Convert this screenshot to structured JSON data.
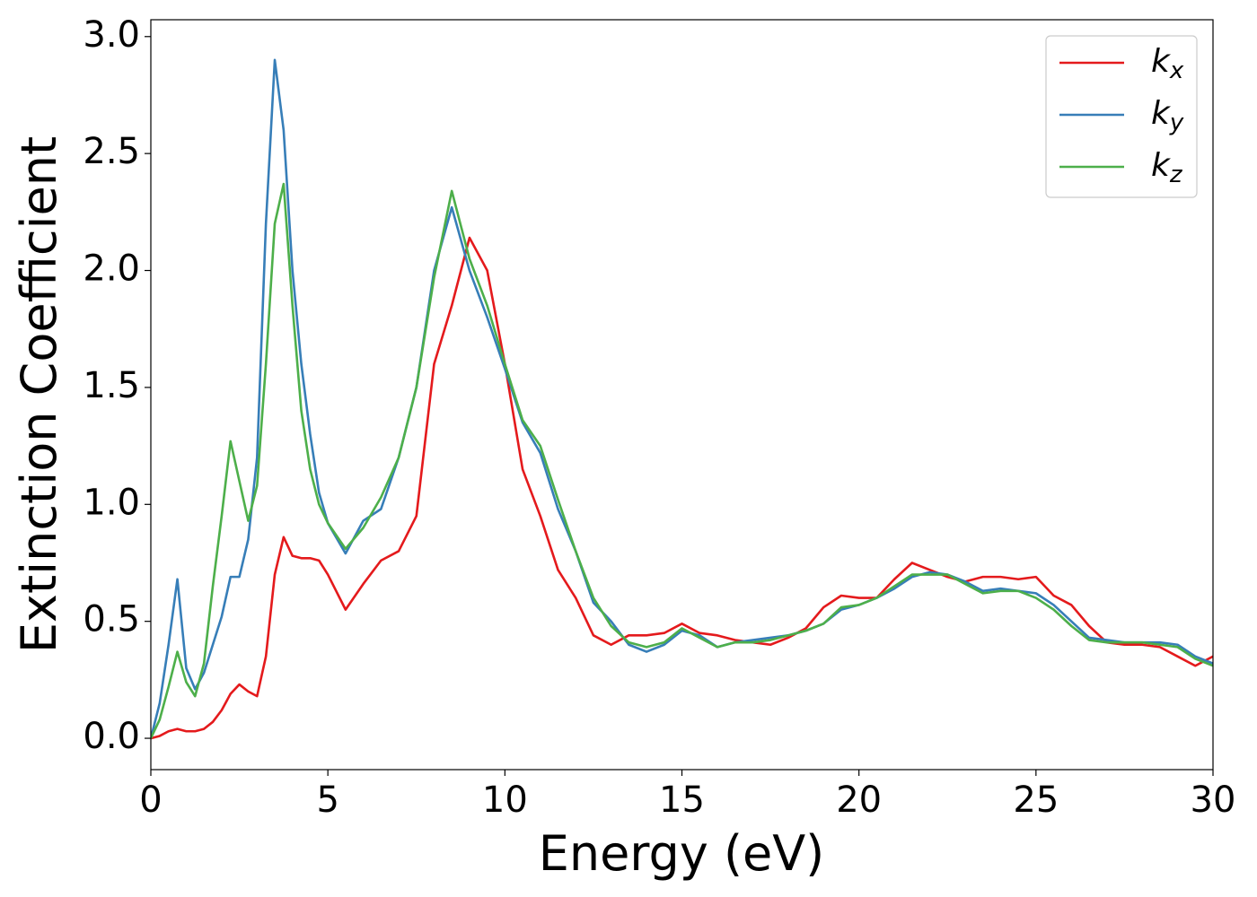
{
  "chart_data": {
    "type": "line",
    "x_label": "Energy (eV)",
    "y_label": "Extinction Coefficient",
    "x": [
      0,
      0.25,
      0.5,
      0.75,
      1,
      1.25,
      1.5,
      1.75,
      2,
      2.25,
      2.5,
      2.75,
      3,
      3.25,
      3.5,
      3.75,
      4,
      4.25,
      4.5,
      4.75,
      5,
      5.5,
      6,
      6.5,
      7,
      7.5,
      8,
      8.5,
      9,
      9.5,
      10,
      10.5,
      11,
      11.5,
      12,
      12.5,
      13,
      13.5,
      14,
      14.5,
      15,
      15.5,
      16,
      16.5,
      17,
      17.5,
      18,
      18.5,
      19,
      19.5,
      20,
      20.5,
      21,
      21.5,
      22,
      22.5,
      23,
      23.5,
      24,
      24.5,
      25,
      25.5,
      26,
      26.5,
      27,
      27.5,
      28,
      28.5,
      29,
      29.5,
      30
    ],
    "series": [
      {
        "name": "kx",
        "color": "#e41a1c",
        "values": [
          0,
          0.01,
          0.03,
          0.04,
          0.03,
          0.03,
          0.04,
          0.07,
          0.12,
          0.19,
          0.23,
          0.2,
          0.18,
          0.35,
          0.7,
          0.86,
          0.78,
          0.77,
          0.77,
          0.76,
          0.7,
          0.55,
          0.66,
          0.76,
          0.8,
          0.95,
          1.6,
          1.85,
          2.14,
          2.0,
          1.6,
          1.15,
          0.95,
          0.72,
          0.6,
          0.44,
          0.4,
          0.44,
          0.44,
          0.45,
          0.49,
          0.45,
          0.44,
          0.42,
          0.41,
          0.4,
          0.43,
          0.47,
          0.56,
          0.61,
          0.6,
          0.6,
          0.68,
          0.75,
          0.72,
          0.69,
          0.67,
          0.69,
          0.69,
          0.68,
          0.69,
          0.61,
          0.57,
          0.48,
          0.41,
          0.4,
          0.4,
          0.39,
          0.35,
          0.31,
          0.35
        ]
      },
      {
        "name": "ky",
        "color": "#377eb8",
        "values": [
          0,
          0.15,
          0.4,
          0.68,
          0.3,
          0.21,
          0.28,
          0.4,
          0.52,
          0.69,
          0.69,
          0.85,
          1.2,
          2.2,
          2.9,
          2.6,
          2.0,
          1.6,
          1.3,
          1.05,
          0.92,
          0.79,
          0.93,
          0.98,
          1.2,
          1.5,
          2.0,
          2.27,
          2.0,
          1.8,
          1.58,
          1.35,
          1.22,
          0.98,
          0.8,
          0.58,
          0.5,
          0.4,
          0.37,
          0.4,
          0.46,
          0.44,
          0.39,
          0.41,
          0.42,
          0.43,
          0.44,
          0.46,
          0.49,
          0.55,
          0.57,
          0.6,
          0.64,
          0.69,
          0.71,
          0.7,
          0.67,
          0.63,
          0.64,
          0.63,
          0.62,
          0.57,
          0.5,
          0.43,
          0.42,
          0.41,
          0.41,
          0.41,
          0.4,
          0.35,
          0.32
        ]
      },
      {
        "name": "kz",
        "color": "#4daf4a",
        "values": [
          0,
          0.08,
          0.22,
          0.37,
          0.24,
          0.18,
          0.32,
          0.65,
          0.95,
          1.27,
          1.1,
          0.93,
          1.08,
          1.6,
          2.2,
          2.37,
          1.85,
          1.4,
          1.15,
          1.0,
          0.92,
          0.81,
          0.9,
          1.03,
          1.2,
          1.5,
          1.97,
          2.34,
          2.05,
          1.85,
          1.6,
          1.36,
          1.25,
          1.02,
          0.8,
          0.6,
          0.48,
          0.41,
          0.39,
          0.41,
          0.47,
          0.43,
          0.39,
          0.41,
          0.41,
          0.42,
          0.44,
          0.46,
          0.49,
          0.56,
          0.57,
          0.6,
          0.65,
          0.7,
          0.7,
          0.7,
          0.66,
          0.62,
          0.63,
          0.63,
          0.6,
          0.55,
          0.48,
          0.42,
          0.41,
          0.41,
          0.41,
          0.4,
          0.39,
          0.34,
          0.31
        ]
      }
    ],
    "xlim": [
      0,
      30
    ],
    "ylim": [
      -0.134,
      3.072
    ],
    "xticks": [
      0,
      5,
      10,
      15,
      20,
      25,
      30
    ],
    "yticks": [
      {
        "value": 0,
        "label": "0.0"
      },
      {
        "value": 0.5,
        "label": "0.5"
      },
      {
        "value": 1,
        "label": "1.0"
      },
      {
        "value": 1.5,
        "label": "1.5"
      },
      {
        "value": 2,
        "label": "2.0"
      },
      {
        "value": 2.5,
        "label": "2.5"
      },
      {
        "value": 3,
        "label": "3.0"
      }
    ],
    "legend": "upper right",
    "grid": false
  }
}
